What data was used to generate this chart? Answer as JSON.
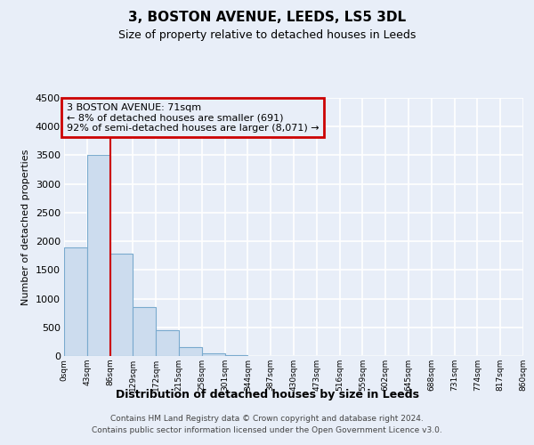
{
  "title": "3, BOSTON AVENUE, LEEDS, LS5 3DL",
  "subtitle": "Size of property relative to detached houses in Leeds",
  "xlabel": "Distribution of detached houses by size in Leeds",
  "ylabel": "Number of detached properties",
  "bar_color": "#ccdcee",
  "bar_edge_color": "#7aaace",
  "background_color": "#e8eef8",
  "grid_color": "#ffffff",
  "x_labels": [
    "0sqm",
    "43sqm",
    "86sqm",
    "129sqm",
    "172sqm",
    "215sqm",
    "258sqm",
    "301sqm",
    "344sqm",
    "387sqm",
    "430sqm",
    "473sqm",
    "516sqm",
    "559sqm",
    "602sqm",
    "645sqm",
    "688sqm",
    "731sqm",
    "774sqm",
    "817sqm",
    "860sqm"
  ],
  "bar_values": [
    1900,
    3500,
    1780,
    850,
    450,
    150,
    50,
    20,
    5,
    2,
    0,
    0,
    0,
    0,
    0,
    0,
    0,
    0,
    0,
    0
  ],
  "ylim": [
    0,
    4500
  ],
  "yticks": [
    0,
    500,
    1000,
    1500,
    2000,
    2500,
    3000,
    3500,
    4000,
    4500
  ],
  "property_line_x": 2.0,
  "annotation_line1": "3 BOSTON AVENUE: 71sqm",
  "annotation_line2": "← 8% of detached houses are smaller (691)",
  "annotation_line3": "92% of semi-detached houses are larger (8,071) →",
  "annotation_box_color": "#cc0000",
  "footer": "Contains HM Land Registry data © Crown copyright and database right 2024.\nContains public sector information licensed under the Open Government Licence v3.0."
}
